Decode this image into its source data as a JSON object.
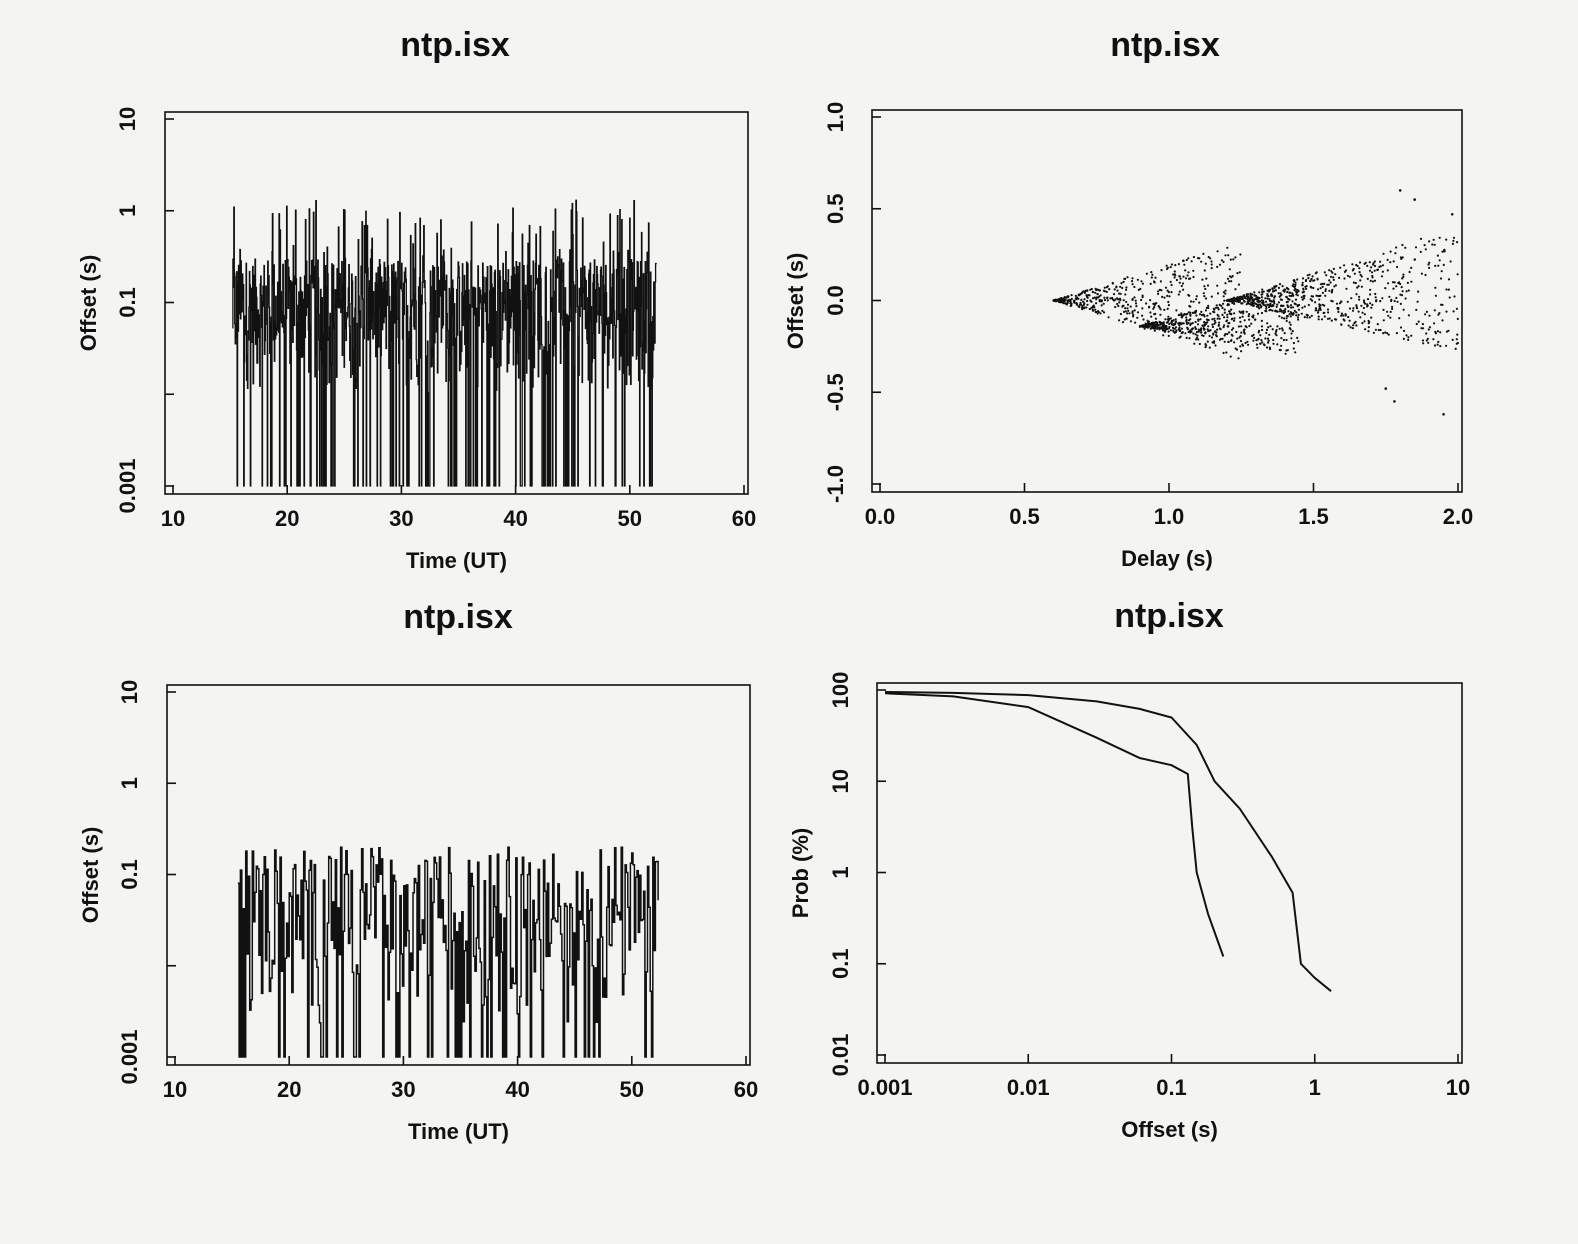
{
  "chart_data": [
    {
      "type": "line",
      "title": "ntp.isx",
      "xlabel": "Time (UT)",
      "ylabel": "Offset (s)",
      "xlim": [
        10,
        60
      ],
      "ylim": [
        0.001,
        10
      ],
      "yscale": "log",
      "xticks": [
        10,
        20,
        30,
        40,
        50,
        60
      ],
      "xtick_labels": [
        "10",
        "20",
        "30",
        "40",
        "50",
        "60"
      ],
      "yticks": [
        0.001,
        0.01,
        0.1,
        1,
        10
      ],
      "ytick_labels": [
        "0.001",
        "",
        "0.1",
        "1",
        "10"
      ],
      "x_range": [
        15.2,
        52.3
      ],
      "typical_range": [
        0.01,
        0.3
      ],
      "max": 1.3,
      "min_clip": 0.001
    },
    {
      "type": "scatter",
      "title": "ntp.isx",
      "xlabel": "Delay (s)",
      "ylabel": "Offset (s)",
      "xlim": [
        0,
        2
      ],
      "ylim": [
        -1,
        1
      ],
      "xticks": [
        0,
        0.5,
        1,
        1.5,
        2
      ],
      "xtick_labels": [
        "0.0",
        "0.5",
        "1.0",
        "1.5",
        "2.0"
      ],
      "yticks": [
        -1,
        -0.5,
        0,
        0.5,
        1
      ],
      "ytick_labels": [
        "-1.0",
        "-0.5",
        "0.0",
        "0.5",
        "1.0"
      ],
      "wedges": [
        {
          "apex": [
            0.6,
            0.0
          ],
          "x_end": 1.25,
          "upper_slope": 0.5,
          "lower_slope": -0.5
        },
        {
          "apex": [
            0.9,
            -0.14
          ],
          "x_end": 1.45,
          "upper_slope": 0.45,
          "lower_slope": -0.3
        },
        {
          "apex": [
            1.2,
            0.0
          ],
          "x_end": 2.0,
          "upper_slope": 0.5,
          "lower_slope": -0.35
        }
      ],
      "outliers": [
        [
          1.75,
          -0.48
        ],
        [
          1.78,
          -0.55
        ],
        [
          1.95,
          -0.62
        ],
        [
          1.8,
          0.6
        ],
        [
          1.85,
          0.55
        ],
        [
          1.98,
          0.47
        ]
      ]
    },
    {
      "type": "line",
      "title": "ntp.isx",
      "xlabel": "Time (UT)",
      "ylabel": "Offset (s)",
      "xlim": [
        10,
        60
      ],
      "ylim": [
        0.001,
        10
      ],
      "yscale": "log",
      "xticks": [
        10,
        20,
        30,
        40,
        50,
        60
      ],
      "xtick_labels": [
        "10",
        "20",
        "30",
        "40",
        "50",
        "60"
      ],
      "yticks": [
        0.001,
        0.01,
        0.1,
        1,
        10
      ],
      "ytick_labels": [
        "0.001",
        "",
        "0.1",
        "1",
        "10"
      ],
      "x_range": [
        15.5,
        52.3
      ],
      "typical_range": [
        0.002,
        0.15
      ],
      "max": 0.2,
      "min_clip": 0.001
    },
    {
      "type": "line",
      "title": "ntp.isx",
      "xlabel": "Offset (s)",
      "ylabel": "Prob (%)",
      "xscale": "log",
      "yscale": "log",
      "xlim": [
        0.001,
        10
      ],
      "ylim": [
        0.01,
        100
      ],
      "xticks": [
        0.001,
        0.01,
        0.1,
        1,
        10
      ],
      "xtick_labels": [
        "0.001",
        "0.01",
        "0.1",
        "1",
        "10"
      ],
      "yticks": [
        0.01,
        0.1,
        1,
        10,
        100
      ],
      "ytick_labels": [
        "0.01",
        "0.1",
        "1",
        "10",
        "100"
      ],
      "series": [
        {
          "x": [
            0.001,
            0.003,
            0.01,
            0.03,
            0.06,
            0.1,
            0.13,
            0.14,
            0.15,
            0.18,
            0.23
          ],
          "y": [
            92,
            85,
            65,
            30,
            18,
            15,
            12,
            3,
            1,
            0.35,
            0.12
          ]
        },
        {
          "x": [
            0.001,
            0.003,
            0.01,
            0.03,
            0.06,
            0.1,
            0.15,
            0.2,
            0.3,
            0.5,
            0.7,
            0.8,
            1.0,
            1.3
          ],
          "y": [
            95,
            93,
            88,
            75,
            62,
            50,
            25,
            10,
            5,
            1.5,
            0.6,
            0.1,
            0.07,
            0.05
          ]
        }
      ]
    }
  ]
}
